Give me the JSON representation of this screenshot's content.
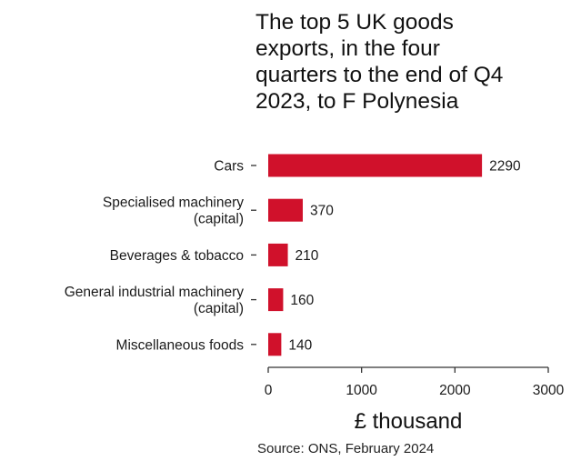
{
  "chart_data": {
    "type": "bar",
    "orientation": "horizontal",
    "title_lines": [
      "The top 5 UK goods",
      "exports, in the four",
      "quarters to the end of Q4",
      "2023, to F Polynesia"
    ],
    "categories": [
      [
        "Cars"
      ],
      [
        "Specialised machinery",
        "(capital)"
      ],
      [
        "Beverages & tobacco"
      ],
      [
        "General industrial machinery",
        "(capital)"
      ],
      [
        "Miscellaneous foods"
      ]
    ],
    "values": [
      2290,
      370,
      210,
      160,
      140
    ],
    "value_labels": [
      "2290",
      "370",
      "210",
      "160",
      "140"
    ],
    "xlabel": "£ thousand",
    "xlim": [
      0,
      3000
    ],
    "xticks": [
      0,
      1000,
      2000,
      3000
    ],
    "xtick_labels": [
      "0",
      "1000",
      "2000",
      "3000"
    ],
    "grid": false,
    "bar_color": "#d0112b",
    "source": "Source: ONS, February 2024"
  }
}
